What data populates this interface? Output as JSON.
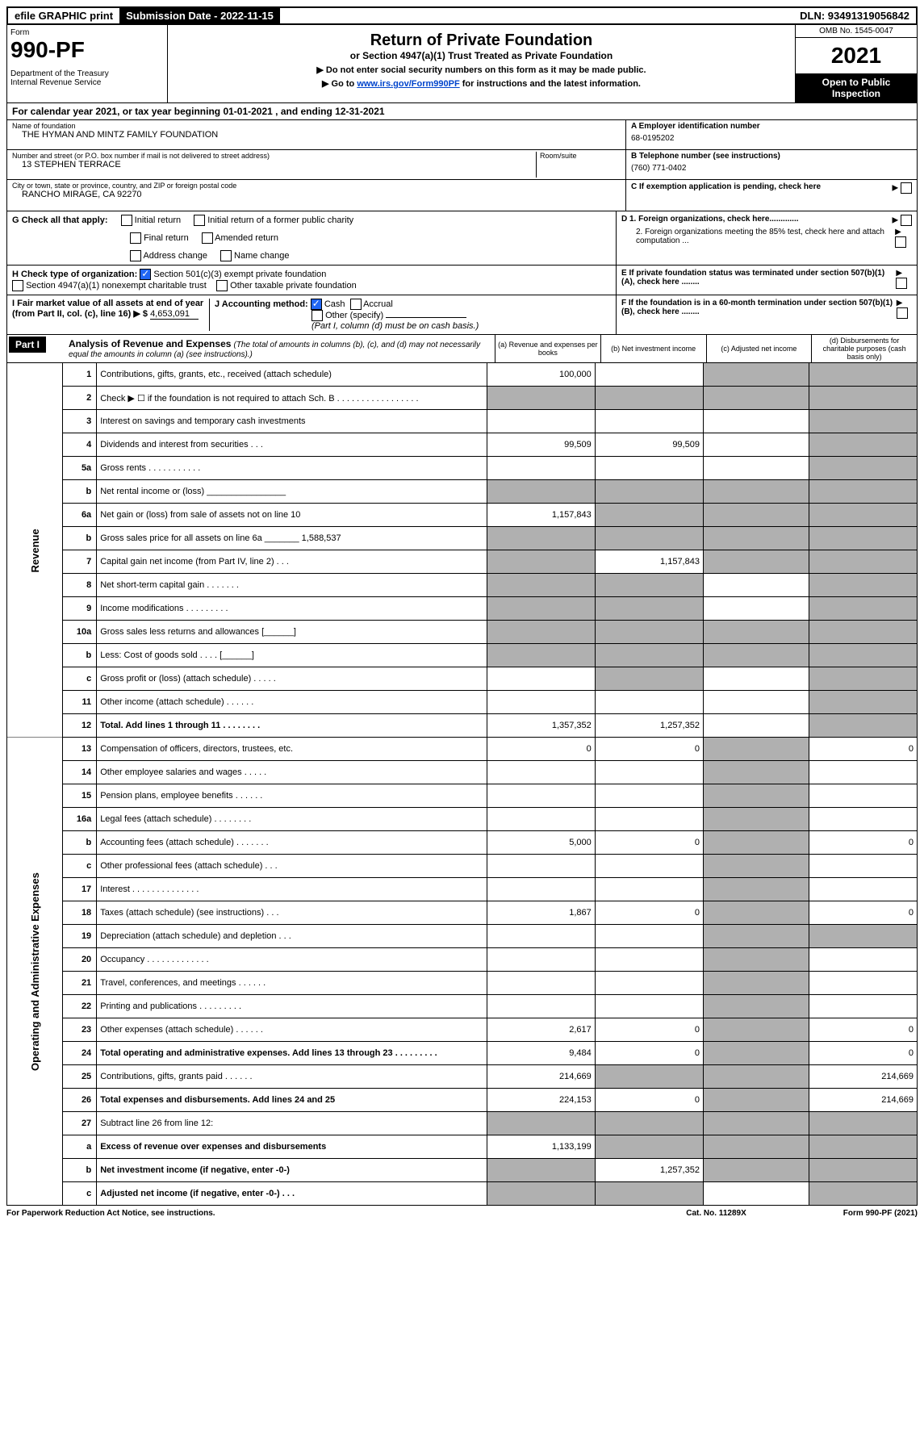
{
  "top_bar": {
    "efile": "efile GRAPHIC print",
    "submission": "Submission Date - 2022-11-15",
    "dln": "DLN: 93491319056842"
  },
  "header": {
    "form_label": "Form",
    "form_number": "990-PF",
    "dept": "Department of the Treasury\nInternal Revenue Service",
    "title": "Return of Private Foundation",
    "subtitle": "or Section 4947(a)(1) Trust Treated as Private Foundation",
    "instr1": "▶ Do not enter social security numbers on this form as it may be made public.",
    "instr2_pre": "▶ Go to ",
    "instr2_link": "www.irs.gov/Form990PF",
    "instr2_post": " for instructions and the latest information.",
    "omb": "OMB No. 1545-0047",
    "year": "2021",
    "open": "Open to Public Inspection"
  },
  "cal_year": "For calendar year 2021, or tax year beginning 01-01-2021                                 , and ending 12-31-2021",
  "info": {
    "name_label": "Name of foundation",
    "name": "THE HYMAN AND MINTZ FAMILY FOUNDATION",
    "addr_label": "Number and street (or P.O. box number if mail is not delivered to street address)",
    "addr": "13 STEPHEN TERRACE",
    "room_label": "Room/suite",
    "city_label": "City or town, state or province, country, and ZIP or foreign postal code",
    "city": "RANCHO MIRAGE, CA  92270",
    "a_label": "A Employer identification number",
    "a_val": "68-0195202",
    "b_label": "B Telephone number (see instructions)",
    "b_val": "(760) 771-0402",
    "c_label": "C If exemption application is pending, check here",
    "d1_label": "D 1. Foreign organizations, check here.............",
    "d2_label": "2. Foreign organizations meeting the 85% test, check here and attach computation ...",
    "e_label": "E  If private foundation status was terminated under section 507(b)(1)(A), check here ........",
    "f_label": "F  If the foundation is in a 60-month termination under section 507(b)(1)(B), check here ........"
  },
  "g": {
    "label": "G Check all that apply:",
    "initial": "Initial return",
    "initial_former": "Initial return of a former public charity",
    "final": "Final return",
    "amended": "Amended return",
    "address": "Address change",
    "name": "Name change"
  },
  "h": {
    "label": "H Check type of organization:",
    "501c3": "Section 501(c)(3) exempt private foundation",
    "4947": "Section 4947(a)(1) nonexempt charitable trust",
    "other_tax": "Other taxable private foundation"
  },
  "i": {
    "label": "I Fair market value of all assets at end of year (from Part II, col. (c), line 16) ▶ $",
    "val": "4,653,091"
  },
  "j": {
    "label": "J Accounting method:",
    "cash": "Cash",
    "accrual": "Accrual",
    "other": "Other (specify)",
    "note": "(Part I, column (d) must be on cash basis.)"
  },
  "part1": {
    "header": "Part I",
    "title": "Analysis of Revenue and Expenses",
    "sub": "(The total of amounts in columns (b), (c), and (d) may not necessarily equal the amounts in column (a) (see instructions).)",
    "col_a": "(a)   Revenue and expenses per books",
    "col_b": "(b)   Net investment income",
    "col_c": "(c)   Adjusted net income",
    "col_d": "(d)   Disbursements for charitable purposes (cash basis only)"
  },
  "side_labels": {
    "revenue": "Revenue",
    "expenses": "Operating and Administrative Expenses"
  },
  "rows": [
    {
      "n": "1",
      "d": "Contributions, gifts, grants, etc., received (attach schedule)",
      "a": "100,000",
      "b": "",
      "c": "g",
      "dd": "g"
    },
    {
      "n": "2",
      "d": "Check ▶ ☐ if the foundation is not required to attach Sch. B    .  .  .  .  .  .  .  .  .  .  .  .  .  .  .  .  .",
      "a": "g",
      "b": "g",
      "c": "g",
      "dd": "g"
    },
    {
      "n": "3",
      "d": "Interest on savings and temporary cash investments",
      "a": "",
      "b": "",
      "c": "",
      "dd": "g"
    },
    {
      "n": "4",
      "d": "Dividends and interest from securities   .   .   .",
      "a": "99,509",
      "b": "99,509",
      "c": "",
      "dd": "g"
    },
    {
      "n": "5a",
      "d": "Gross rents    .   .   .   .   .   .   .   .   .   .   .",
      "a": "",
      "b": "",
      "c": "",
      "dd": "g"
    },
    {
      "n": "b",
      "d": "Net rental income or (loss)  ________________",
      "a": "g",
      "b": "g",
      "c": "g",
      "dd": "g"
    },
    {
      "n": "6a",
      "d": "Net gain or (loss) from sale of assets not on line 10",
      "a": "1,157,843",
      "b": "g",
      "c": "g",
      "dd": "g"
    },
    {
      "n": "b",
      "d": "Gross sales price for all assets on line 6a _______ 1,588,537",
      "a": "g",
      "b": "g",
      "c": "g",
      "dd": "g"
    },
    {
      "n": "7",
      "d": "Capital gain net income (from Part IV, line 2)    .   .   .",
      "a": "g",
      "b": "1,157,843",
      "c": "g",
      "dd": "g"
    },
    {
      "n": "8",
      "d": "Net short-term capital gain   .   .   .   .   .   .   .",
      "a": "g",
      "b": "g",
      "c": "",
      "dd": "g"
    },
    {
      "n": "9",
      "d": "Income modifications   .   .   .   .   .   .   .   .   .",
      "a": "g",
      "b": "g",
      "c": "",
      "dd": "g"
    },
    {
      "n": "10a",
      "d": "Gross sales less returns and allowances  [______]",
      "a": "g",
      "b": "g",
      "c": "g",
      "dd": "g"
    },
    {
      "n": "b",
      "d": "Less: Cost of goods sold    .   .   .   .    [______]",
      "a": "g",
      "b": "g",
      "c": "g",
      "dd": "g"
    },
    {
      "n": "c",
      "d": "Gross profit or (loss) (attach schedule)    .   .   .   .   .",
      "a": "",
      "b": "g",
      "c": "",
      "dd": "g"
    },
    {
      "n": "11",
      "d": "Other income (attach schedule)    .   .   .   .   .   .",
      "a": "",
      "b": "",
      "c": "",
      "dd": "g"
    },
    {
      "n": "12",
      "d": "Total. Add lines 1 through 11    .   .   .   .   .   .   .   .",
      "a": "1,357,352",
      "b": "1,257,352",
      "c": "",
      "dd": "g",
      "bold": true
    },
    {
      "n": "13",
      "d": "Compensation of officers, directors, trustees, etc.",
      "a": "0",
      "b": "0",
      "c": "g",
      "dd": "0"
    },
    {
      "n": "14",
      "d": "Other employee salaries and wages    .   .   .   .   .",
      "a": "",
      "b": "",
      "c": "g",
      "dd": ""
    },
    {
      "n": "15",
      "d": "Pension plans, employee benefits    .   .   .   .   .   .",
      "a": "",
      "b": "",
      "c": "g",
      "dd": ""
    },
    {
      "n": "16a",
      "d": "Legal fees (attach schedule)   .   .   .   .   .   .   .   .",
      "a": "",
      "b": "",
      "c": "g",
      "dd": ""
    },
    {
      "n": "b",
      "d": "Accounting fees (attach schedule)   .   .   .   .   .   .   .",
      "a": "5,000",
      "b": "0",
      "c": "g",
      "dd": "0"
    },
    {
      "n": "c",
      "d": "Other professional fees (attach schedule)     .   .   .",
      "a": "",
      "b": "",
      "c": "g",
      "dd": ""
    },
    {
      "n": "17",
      "d": "Interest   .   .   .   .   .   .   .   .   .   .   .   .   .   .",
      "a": "",
      "b": "",
      "c": "g",
      "dd": ""
    },
    {
      "n": "18",
      "d": "Taxes (attach schedule) (see instructions)      .   .   .",
      "a": "1,867",
      "b": "0",
      "c": "g",
      "dd": "0"
    },
    {
      "n": "19",
      "d": "Depreciation (attach schedule) and depletion    .   .   .",
      "a": "",
      "b": "",
      "c": "g",
      "dd": "g"
    },
    {
      "n": "20",
      "d": "Occupancy   .   .   .   .   .   .   .   .   .   .   .   .   .",
      "a": "",
      "b": "",
      "c": "g",
      "dd": ""
    },
    {
      "n": "21",
      "d": "Travel, conferences, and meetings   .   .   .   .   .   .",
      "a": "",
      "b": "",
      "c": "g",
      "dd": ""
    },
    {
      "n": "22",
      "d": "Printing and publications   .   .   .   .   .   .   .   .   .",
      "a": "",
      "b": "",
      "c": "g",
      "dd": ""
    },
    {
      "n": "23",
      "d": "Other expenses (attach schedule)   .   .   .   .   .   .",
      "a": "2,617",
      "b": "0",
      "c": "g",
      "dd": "0"
    },
    {
      "n": "24",
      "d": "Total operating and administrative expenses. Add lines 13 through 23    .   .   .   .   .   .   .   .   .",
      "a": "9,484",
      "b": "0",
      "c": "g",
      "dd": "0",
      "bold": true
    },
    {
      "n": "25",
      "d": "Contributions, gifts, grants paid     .   .   .   .   .   .",
      "a": "214,669",
      "b": "g",
      "c": "g",
      "dd": "214,669"
    },
    {
      "n": "26",
      "d": "Total expenses and disbursements. Add lines 24 and 25",
      "a": "224,153",
      "b": "0",
      "c": "g",
      "dd": "214,669",
      "bold": true
    },
    {
      "n": "27",
      "d": "Subtract line 26 from line 12:",
      "a": "g",
      "b": "g",
      "c": "g",
      "dd": "g"
    },
    {
      "n": "a",
      "d": "Excess of revenue over expenses and disbursements",
      "a": "1,133,199",
      "b": "g",
      "c": "g",
      "dd": "g",
      "bold": true
    },
    {
      "n": "b",
      "d": "Net investment income (if negative, enter -0-)",
      "a": "g",
      "b": "1,257,352",
      "c": "g",
      "dd": "g",
      "bold": true
    },
    {
      "n": "c",
      "d": "Adjusted net income (if negative, enter -0-)    .   .   .",
      "a": "g",
      "b": "g",
      "c": "",
      "dd": "g",
      "bold": true
    }
  ],
  "footer": {
    "left": "For Paperwork Reduction Act Notice, see instructions.",
    "mid": "Cat. No. 11289X",
    "right": "Form 990-PF (2021)"
  },
  "colors": {
    "grey": "#b0b0b0",
    "link": "#0044cc",
    "check": "#2166f3"
  }
}
